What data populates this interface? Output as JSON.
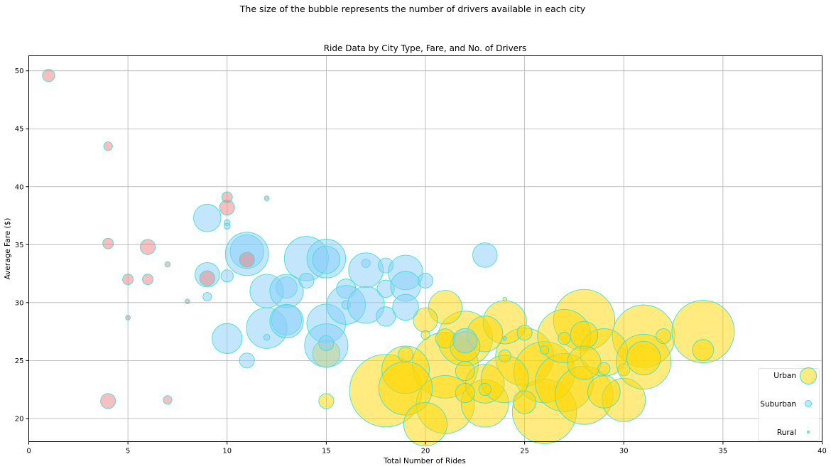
{
  "suptitle": "The size of the bubble represents the number of drivers available in each city",
  "legend": {
    "urban": "Urban",
    "suburban": "Suburban",
    "rural": "Rural"
  },
  "colors": {
    "urban_fill": "#FFD700",
    "suburban_fill": "#87CEFA",
    "rural_fill": "#F08080",
    "edge": "#40E0D0",
    "grid": "#b0b0b0"
  },
  "chart_data": {
    "type": "scatter",
    "title": "Ride Data by City Type, Fare, and No. of Drivers",
    "xlabel": "Total Number of Rides",
    "ylabel": "Average Fare ($)",
    "xlim": [
      0,
      40
    ],
    "ylim": [
      18,
      51.3
    ],
    "xticks": [
      0,
      5,
      10,
      15,
      20,
      25,
      30,
      35,
      40
    ],
    "yticks": [
      20,
      25,
      30,
      35,
      40,
      45,
      50
    ],
    "grid": true,
    "legend_position": "lower-right",
    "series": [
      {
        "name": "Urban",
        "points": [
          {
            "x": 18,
            "y": 22.4,
            "drivers": 70
          },
          {
            "x": 26,
            "y": 20.6,
            "drivers": 55
          },
          {
            "x": 28,
            "y": 28.5,
            "drivers": 50
          },
          {
            "x": 31,
            "y": 27.1,
            "drivers": 52
          },
          {
            "x": 34,
            "y": 27.5,
            "drivers": 52
          },
          {
            "x": 21,
            "y": 24.6,
            "drivers": 58
          },
          {
            "x": 22,
            "y": 26.9,
            "drivers": 40
          },
          {
            "x": 25,
            "y": 25.3,
            "drivers": 45
          },
          {
            "x": 26,
            "y": 24.0,
            "drivers": 50
          },
          {
            "x": 27,
            "y": 23.1,
            "drivers": 45
          },
          {
            "x": 28,
            "y": 22.0,
            "drivers": 45
          },
          {
            "x": 27,
            "y": 27.1,
            "drivers": 38
          },
          {
            "x": 29,
            "y": 25.7,
            "drivers": 30
          },
          {
            "x": 30,
            "y": 21.6,
            "drivers": 25
          },
          {
            "x": 21,
            "y": 21.2,
            "drivers": 45
          },
          {
            "x": 19,
            "y": 24.2,
            "drivers": 30
          },
          {
            "x": 19,
            "y": 22.6,
            "drivers": 38
          },
          {
            "x": 20,
            "y": 19.5,
            "drivers": 25
          },
          {
            "x": 23,
            "y": 21.3,
            "drivers": 30
          },
          {
            "x": 23,
            "y": 23.0,
            "drivers": 20
          },
          {
            "x": 24,
            "y": 23.4,
            "drivers": 30
          },
          {
            "x": 24,
            "y": 28.3,
            "drivers": 25
          },
          {
            "x": 23,
            "y": 27.3,
            "drivers": 17
          },
          {
            "x": 22,
            "y": 26.2,
            "drivers": 12
          },
          {
            "x": 21,
            "y": 29.6,
            "drivers": 15
          },
          {
            "x": 20,
            "y": 28.5,
            "drivers": 8
          },
          {
            "x": 21,
            "y": 26.9,
            "drivers": 5
          },
          {
            "x": 22,
            "y": 24.1,
            "drivers": 5
          },
          {
            "x": 22,
            "y": 22.2,
            "drivers": 5
          },
          {
            "x": 25,
            "y": 21.4,
            "drivers": 7
          },
          {
            "x": 25,
            "y": 27.4,
            "drivers": 3
          },
          {
            "x": 27,
            "y": 26.9,
            "drivers": 2
          },
          {
            "x": 28,
            "y": 27.2,
            "drivers": 10
          },
          {
            "x": 28,
            "y": 24.8,
            "drivers": 15
          },
          {
            "x": 29,
            "y": 22.3,
            "drivers": 14
          },
          {
            "x": 29,
            "y": 24.3,
            "drivers": 2
          },
          {
            "x": 30,
            "y": 24.2,
            "drivers": 2
          },
          {
            "x": 31,
            "y": 24.9,
            "drivers": 40
          },
          {
            "x": 31,
            "y": 25.2,
            "drivers": 15
          },
          {
            "x": 32,
            "y": 27.1,
            "drivers": 3
          },
          {
            "x": 34,
            "y": 25.9,
            "drivers": 6
          },
          {
            "x": 15,
            "y": 25.6,
            "drivers": 10
          },
          {
            "x": 15,
            "y": 21.5,
            "drivers": 3
          },
          {
            "x": 19,
            "y": 25.5,
            "drivers": 3
          },
          {
            "x": 20,
            "y": 27.2,
            "drivers": 1
          },
          {
            "x": 23,
            "y": 22.5,
            "drivers": 2
          },
          {
            "x": 24,
            "y": 25.4,
            "drivers": 2
          },
          {
            "x": 24,
            "y": 30.3,
            "drivers": 0.2
          },
          {
            "x": 26,
            "y": 25.9,
            "drivers": 1
          }
        ]
      },
      {
        "name": "Suburban",
        "points": [
          {
            "x": 9,
            "y": 37.3,
            "drivers": 10
          },
          {
            "x": 9,
            "y": 32.4,
            "drivers": 8
          },
          {
            "x": 9,
            "y": 30.5,
            "drivers": 1
          },
          {
            "x": 10,
            "y": 36.9,
            "drivers": 0.5
          },
          {
            "x": 10,
            "y": 36.6,
            "drivers": 0.5
          },
          {
            "x": 10,
            "y": 32.3,
            "drivers": 2
          },
          {
            "x": 10,
            "y": 26.9,
            "drivers": 12
          },
          {
            "x": 11,
            "y": 34.4,
            "drivers": 15
          },
          {
            "x": 11,
            "y": 34.2,
            "drivers": 25
          },
          {
            "x": 11,
            "y": 25.0,
            "drivers": 3
          },
          {
            "x": 12,
            "y": 31.0,
            "drivers": 15
          },
          {
            "x": 12,
            "y": 27.8,
            "drivers": 22
          },
          {
            "x": 12,
            "y": 27.0,
            "drivers": 0.5
          },
          {
            "x": 13,
            "y": 31.3,
            "drivers": 6
          },
          {
            "x": 13,
            "y": 31.0,
            "drivers": 15
          },
          {
            "x": 13,
            "y": 28.5,
            "drivers": 12
          },
          {
            "x": 13,
            "y": 28.4,
            "drivers": 15
          },
          {
            "x": 14,
            "y": 33.8,
            "drivers": 26
          },
          {
            "x": 14,
            "y": 31.9,
            "drivers": 3
          },
          {
            "x": 15,
            "y": 33.8,
            "drivers": 20
          },
          {
            "x": 15,
            "y": 33.7,
            "drivers": 10
          },
          {
            "x": 15,
            "y": 28.2,
            "drivers": 20
          },
          {
            "x": 15,
            "y": 26.3,
            "drivers": 25
          },
          {
            "x": 15,
            "y": 26.5,
            "drivers": 3
          },
          {
            "x": 16,
            "y": 31.2,
            "drivers": 5
          },
          {
            "x": 16,
            "y": 29.8,
            "drivers": 20
          },
          {
            "x": 16,
            "y": 29.8,
            "drivers": 1
          },
          {
            "x": 17,
            "y": 33.4,
            "drivers": 1
          },
          {
            "x": 17,
            "y": 32.8,
            "drivers": 16
          },
          {
            "x": 17,
            "y": 29.8,
            "drivers": 18
          },
          {
            "x": 18,
            "y": 33.2,
            "drivers": 3
          },
          {
            "x": 18,
            "y": 31.2,
            "drivers": 4
          },
          {
            "x": 18,
            "y": 28.8,
            "drivers": 5
          },
          {
            "x": 19,
            "y": 32.6,
            "drivers": 16
          },
          {
            "x": 19,
            "y": 31.4,
            "drivers": 12
          },
          {
            "x": 19,
            "y": 29.6,
            "drivers": 9
          },
          {
            "x": 20,
            "y": 31.9,
            "drivers": 3
          },
          {
            "x": 22,
            "y": 26.7,
            "drivers": 8
          },
          {
            "x": 23,
            "y": 34.1,
            "drivers": 8
          },
          {
            "x": 24,
            "y": 26.9,
            "drivers": 0.2
          }
        ]
      },
      {
        "name": "Rural",
        "points": [
          {
            "x": 1,
            "y": 49.6,
            "drivers": 2
          },
          {
            "x": 4,
            "y": 43.5,
            "drivers": 1
          },
          {
            "x": 4,
            "y": 35.1,
            "drivers": 1.5
          },
          {
            "x": 4,
            "y": 21.5,
            "drivers": 3
          },
          {
            "x": 5,
            "y": 32.0,
            "drivers": 1.5
          },
          {
            "x": 5,
            "y": 28.7,
            "drivers": 0.3
          },
          {
            "x": 6,
            "y": 34.8,
            "drivers": 3
          },
          {
            "x": 6,
            "y": 32.0,
            "drivers": 1.5
          },
          {
            "x": 7,
            "y": 33.3,
            "drivers": 0.4
          },
          {
            "x": 7,
            "y": 21.6,
            "drivers": 1
          },
          {
            "x": 8,
            "y": 30.1,
            "drivers": 0.3
          },
          {
            "x": 9,
            "y": 32.1,
            "drivers": 3
          },
          {
            "x": 10,
            "y": 39.1,
            "drivers": 1.5
          },
          {
            "x": 10,
            "y": 38.2,
            "drivers": 3
          },
          {
            "x": 11,
            "y": 33.7,
            "drivers": 3
          },
          {
            "x": 12,
            "y": 39.0,
            "drivers": 0.3
          }
        ]
      }
    ]
  }
}
